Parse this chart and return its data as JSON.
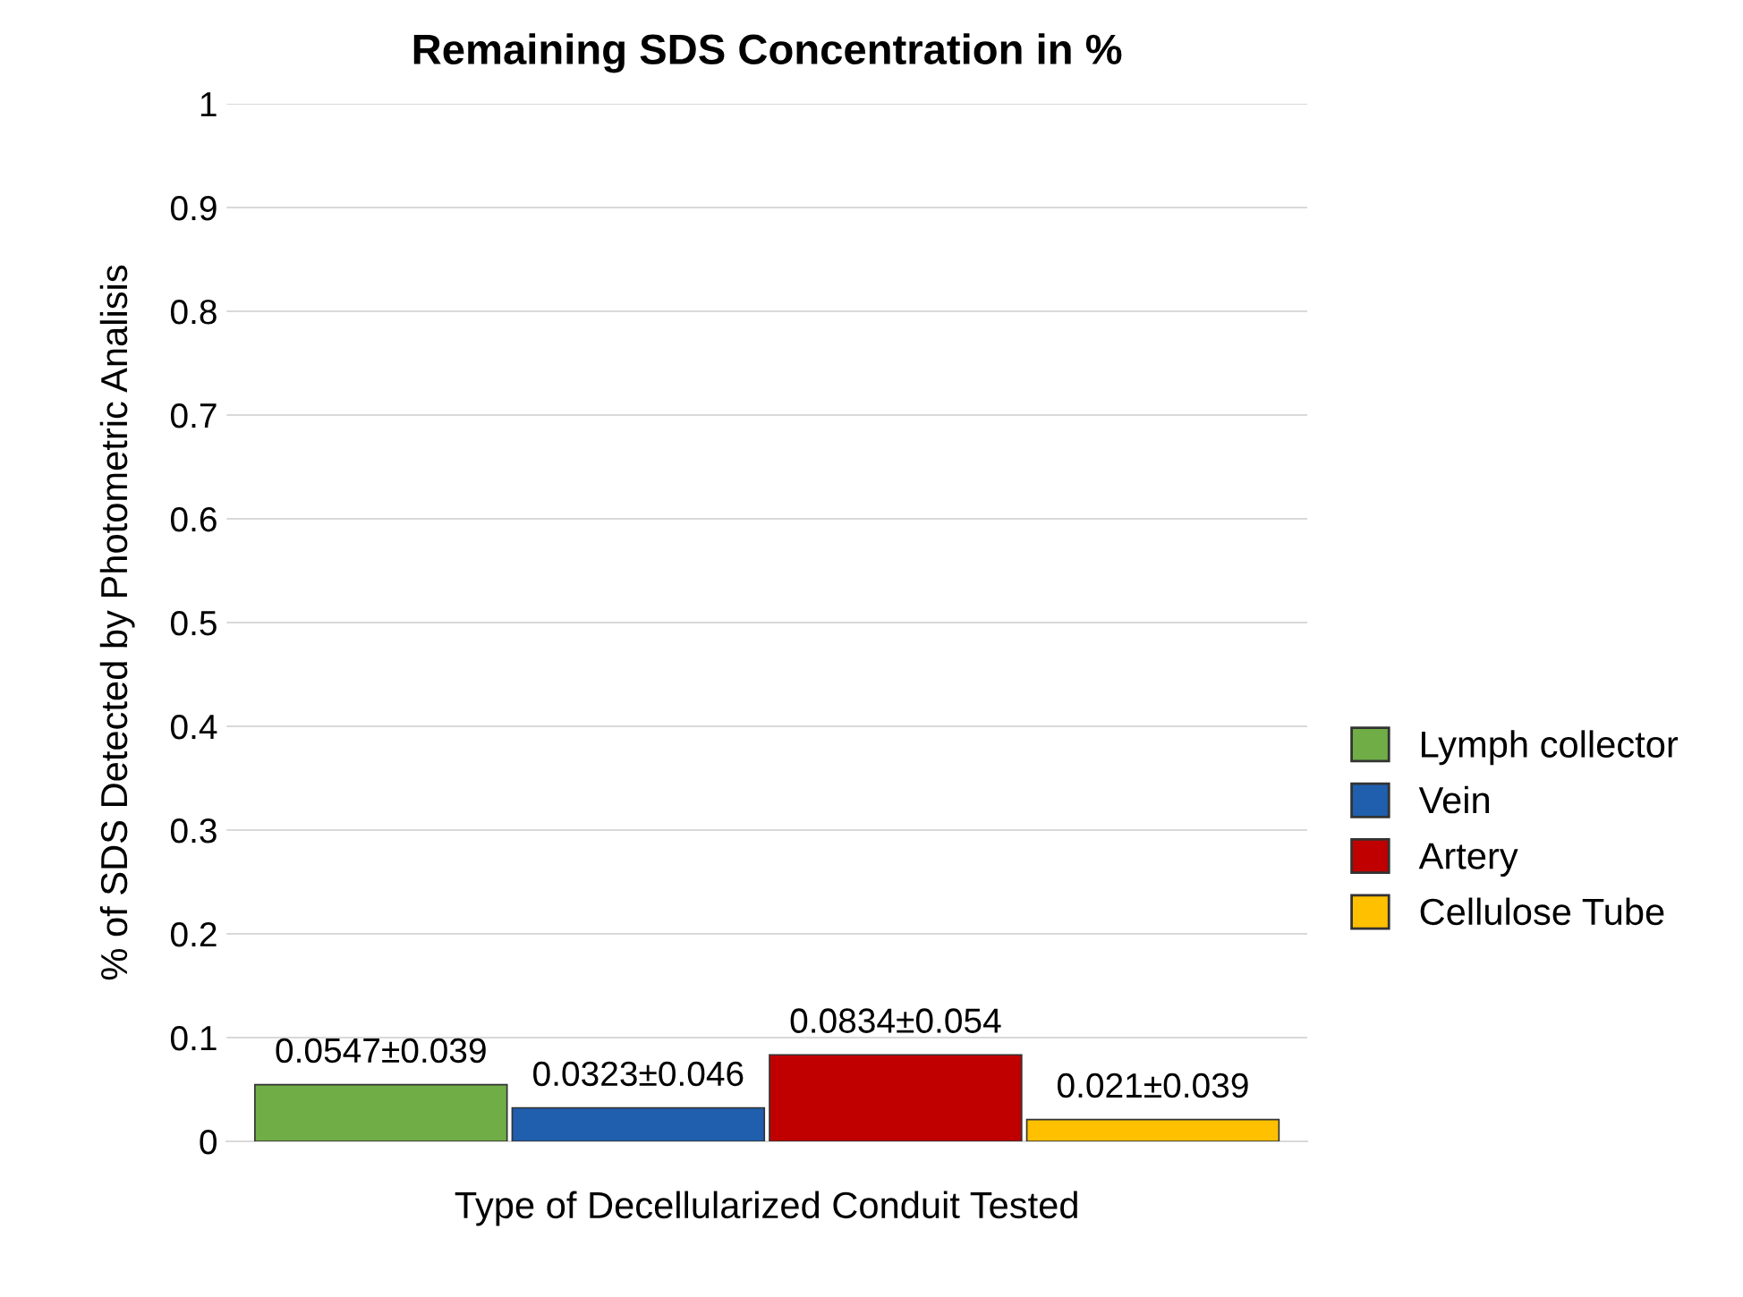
{
  "chart_data": {
    "type": "bar",
    "title": "Remaining SDS Concentration in %",
    "xlabel": "Type of Decellularized Conduit Tested",
    "ylabel": "% of SDS Detected by Photometric Analisis",
    "categories": [
      null,
      null,
      null,
      null
    ],
    "series": [
      {
        "name": "Lymph collector",
        "color": "#70ad47",
        "values": [
          0.0547,
          null,
          null,
          null
        ],
        "value_labels": [
          "0.0547±0.039",
          null,
          null,
          null
        ]
      },
      {
        "name": "Vein",
        "color": "#1f5fad",
        "values": [
          null,
          0.0323,
          null,
          null
        ],
        "value_labels": [
          null,
          "0.0323±0.046",
          null,
          null
        ]
      },
      {
        "name": "Artery",
        "color": "#c00000",
        "values": [
          null,
          null,
          0.0834,
          null
        ],
        "value_labels": [
          null,
          null,
          "0.0834±0.054",
          null
        ]
      },
      {
        "name": "Cellulose Tube",
        "color": "#ffc000",
        "values": [
          null,
          null,
          null,
          0.021
        ],
        "value_labels": [
          null,
          null,
          null,
          "0.021±0.039"
        ]
      }
    ],
    "ylim": [
      0,
      1
    ],
    "yticks": [
      0,
      0.1,
      0.2,
      0.3,
      0.4,
      0.5,
      0.6,
      0.7,
      0.8,
      0.9,
      1
    ],
    "grid": "y",
    "legend": "right",
    "tick_labels": "y"
  }
}
